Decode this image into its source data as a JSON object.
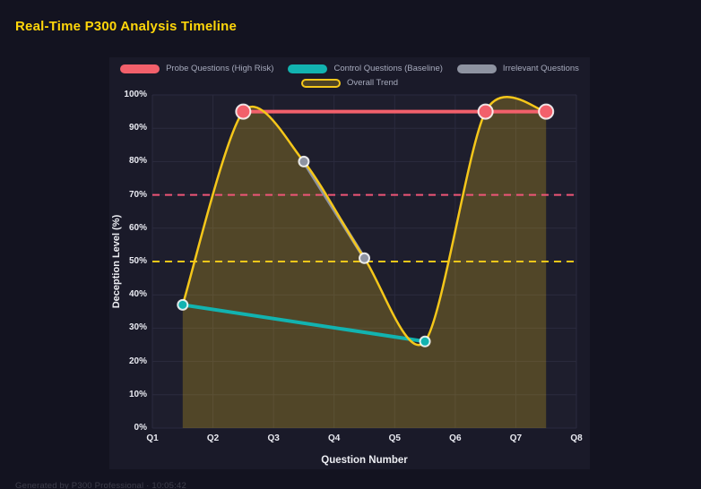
{
  "page": {
    "title": "Real-Time P300 Analysis Timeline",
    "footer": "Generated by P300 Professional · 10:05:42"
  },
  "chart_data": {
    "type": "line",
    "title": "Real-Time P300 Analysis Timeline",
    "xlabel": "Question Number",
    "ylabel": "Deception Level (%)",
    "x_range": [
      1,
      8
    ],
    "y_range": [
      0,
      100
    ],
    "x_tick_values": [
      1,
      2,
      3,
      4,
      5,
      6,
      7,
      8
    ],
    "x_tick_labels": [
      "Q1",
      "Q2",
      "Q3",
      "Q4",
      "Q5",
      "Q6",
      "Q7",
      "Q8"
    ],
    "y_tick_values": [
      0,
      10,
      20,
      30,
      40,
      50,
      60,
      70,
      80,
      90,
      100
    ],
    "y_tick_labels": [
      "0%",
      "10%",
      "20%",
      "30%",
      "40%",
      "50%",
      "60%",
      "70%",
      "80%",
      "90%",
      "100%"
    ],
    "grid": true,
    "legend_position": "top",
    "legend_rows": [
      [
        0,
        1,
        2
      ],
      [
        3
      ]
    ],
    "series": [
      {
        "name": "Probe Questions (High Risk)",
        "color": "#f2606b",
        "line_width": 4,
        "marker_radius": 8,
        "points": [
          [
            2.5,
            95
          ],
          [
            6.5,
            95
          ],
          [
            7.5,
            95
          ]
        ]
      },
      {
        "name": "Control Questions (Baseline)",
        "color": "#12b3b0",
        "line_width": 4,
        "marker_radius": 5.5,
        "points": [
          [
            1.5,
            37
          ],
          [
            5.5,
            26
          ]
        ]
      },
      {
        "name": "Irrelevant Questions",
        "color": "#8e93a1",
        "line_width": 4,
        "marker_radius": 5.5,
        "points": [
          [
            3.5,
            80
          ],
          [
            4.5,
            51
          ]
        ]
      },
      {
        "name": "Overall Trend",
        "color": "#f5c71a",
        "line_width": 2.5,
        "smooth": true,
        "area_fill": "rgba(245,199,26,0.24)",
        "points": [
          [
            1.5,
            37
          ],
          [
            2.5,
            95
          ],
          [
            3.5,
            80
          ],
          [
            4.5,
            51
          ],
          [
            5.5,
            26
          ],
          [
            6.5,
            95
          ],
          [
            7.5,
            95
          ]
        ]
      }
    ],
    "thresholds": [
      {
        "value": 70,
        "color": "#ee5577",
        "style": "dashed"
      },
      {
        "value": 50,
        "color": "#f5c71a",
        "style": "dashed"
      }
    ],
    "grid_color": "#2b2b3e"
  }
}
